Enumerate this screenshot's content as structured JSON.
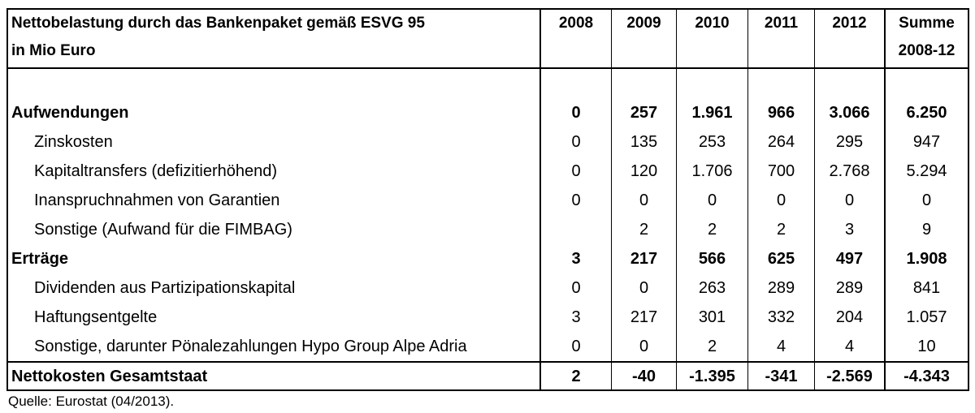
{
  "header": {
    "title_line1": "Nettobelastung durch das Bankenpaket gemäß ESVG 95",
    "title_line2": "in Mio Euro",
    "years": [
      "2008",
      "2009",
      "2010",
      "2011",
      "2012"
    ],
    "sum_line1": "Summe",
    "sum_line2": "2008-12"
  },
  "rows": [
    {
      "label": "Aufwendungen",
      "bold": true,
      "indent": false,
      "values": [
        "0",
        "257",
        "1.961",
        "966",
        "3.066",
        "6.250"
      ]
    },
    {
      "label": "Zinskosten",
      "bold": false,
      "indent": true,
      "values": [
        "0",
        "135",
        "253",
        "264",
        "295",
        "947"
      ]
    },
    {
      "label": "Kapitaltransfers (defizitierhöhend)",
      "bold": false,
      "indent": true,
      "values": [
        "0",
        "120",
        "1.706",
        "700",
        "2.768",
        "5.294"
      ]
    },
    {
      "label": "Inanspruchnahmen von Garantien",
      "bold": false,
      "indent": true,
      "values": [
        "0",
        "0",
        "0",
        "0",
        "0",
        "0"
      ]
    },
    {
      "label": "Sonstige (Aufwand für die  FIMBAG)",
      "bold": false,
      "indent": true,
      "values": [
        "",
        "2",
        "2",
        "2",
        "3",
        "9"
      ]
    },
    {
      "label": "Erträge",
      "bold": true,
      "indent": false,
      "values": [
        "3",
        "217",
        "566",
        "625",
        "497",
        "1.908"
      ]
    },
    {
      "label": "Dividenden aus Partizipationskapital",
      "bold": false,
      "indent": true,
      "values": [
        "0",
        "0",
        "263",
        "289",
        "289",
        "841"
      ]
    },
    {
      "label": "Haftungsentgelte",
      "bold": false,
      "indent": true,
      "values": [
        "3",
        "217",
        "301",
        "332",
        "204",
        "1.057"
      ]
    },
    {
      "label": "Sonstige, darunter Pönalezahlungen Hypo Group Alpe Adria",
      "bold": false,
      "indent": true,
      "values": [
        "0",
        "0",
        "2",
        "4",
        "4",
        "10"
      ]
    }
  ],
  "total": {
    "label": "Nettokosten Gesamtstaat",
    "values": [
      "2",
      "-40",
      "-1.395",
      "-341",
      "-2.569",
      "-4.343"
    ]
  },
  "source": "Quelle: Eurostat (04/2013)."
}
